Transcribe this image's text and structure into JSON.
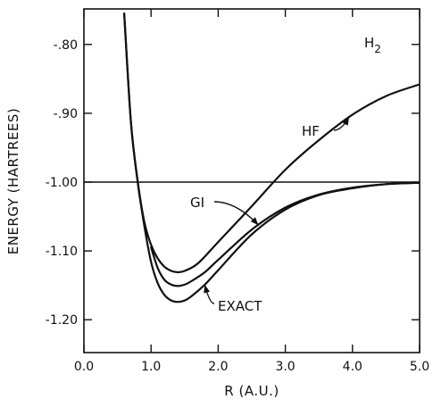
{
  "chart_data": {
    "type": "line",
    "title": "",
    "xlabel": "R (A.U.)",
    "ylabel": "ENERGY (HARTREES)",
    "xlim": [
      0.0,
      5.0
    ],
    "ylim": [
      -1.25,
      -0.74
    ],
    "grid": false,
    "x_ticks": [
      0.0,
      1.0,
      2.0,
      3.0,
      4.0,
      5.0
    ],
    "x_tick_labels": [
      "0.0",
      "1.0",
      "2.0",
      "3.0",
      "4.0",
      "5.0"
    ],
    "y_ticks": [
      -0.8,
      -0.9,
      -1.0,
      -1.1,
      -1.2
    ],
    "y_tick_labels": [
      "-.80",
      "-.90",
      "-1.00",
      "-1.10",
      "-1.20"
    ],
    "reference_line": {
      "y": -1.0
    },
    "molecule_label": {
      "base": "H",
      "subscript": "2"
    },
    "series": [
      {
        "name": "HF",
        "x": [
          0.6,
          0.7,
          0.8,
          0.9,
          1.0,
          1.1,
          1.2,
          1.3,
          1.4,
          1.5,
          1.7,
          2.0,
          2.5,
          3.0,
          3.5,
          4.0,
          4.5,
          5.0
        ],
        "y": [
          -0.755,
          -0.912,
          -0.998,
          -1.058,
          -1.091,
          -1.111,
          -1.123,
          -1.129,
          -1.131,
          -1.129,
          -1.118,
          -1.087,
          -1.035,
          -0.982,
          -0.939,
          -0.902,
          -0.875,
          -0.858
        ]
      },
      {
        "name": "GI",
        "x": [
          1.0,
          1.1,
          1.2,
          1.3,
          1.4,
          1.5,
          1.6,
          1.8,
          2.0,
          2.5,
          3.0,
          3.5,
          4.0,
          4.5,
          5.0
        ],
        "y": [
          -1.095,
          -1.125,
          -1.142,
          -1.149,
          -1.151,
          -1.149,
          -1.144,
          -1.131,
          -1.113,
          -1.069,
          -1.037,
          -1.018,
          -1.008,
          -1.003,
          -1.001
        ]
      },
      {
        "name": "EXACT",
        "x": [
          0.6,
          0.7,
          0.8,
          0.9,
          1.0,
          1.1,
          1.2,
          1.3,
          1.4,
          1.5,
          1.6,
          1.8,
          2.0,
          2.5,
          3.0,
          3.5,
          4.0,
          4.5,
          5.0
        ],
        "y": [
          -0.755,
          -0.912,
          -1.0,
          -1.064,
          -1.116,
          -1.147,
          -1.164,
          -1.172,
          -1.174,
          -1.172,
          -1.166,
          -1.149,
          -1.128,
          -1.076,
          -1.04,
          -1.019,
          -1.009,
          -1.003,
          -1.001
        ]
      }
    ],
    "annotations": [
      {
        "text": "HF",
        "series": "HF",
        "at_x": 3.95
      },
      {
        "text": "GI",
        "series": "GI",
        "at_x": 2.6
      },
      {
        "text": "EXACT",
        "series": "EXACT",
        "at_x": 1.8
      }
    ]
  }
}
